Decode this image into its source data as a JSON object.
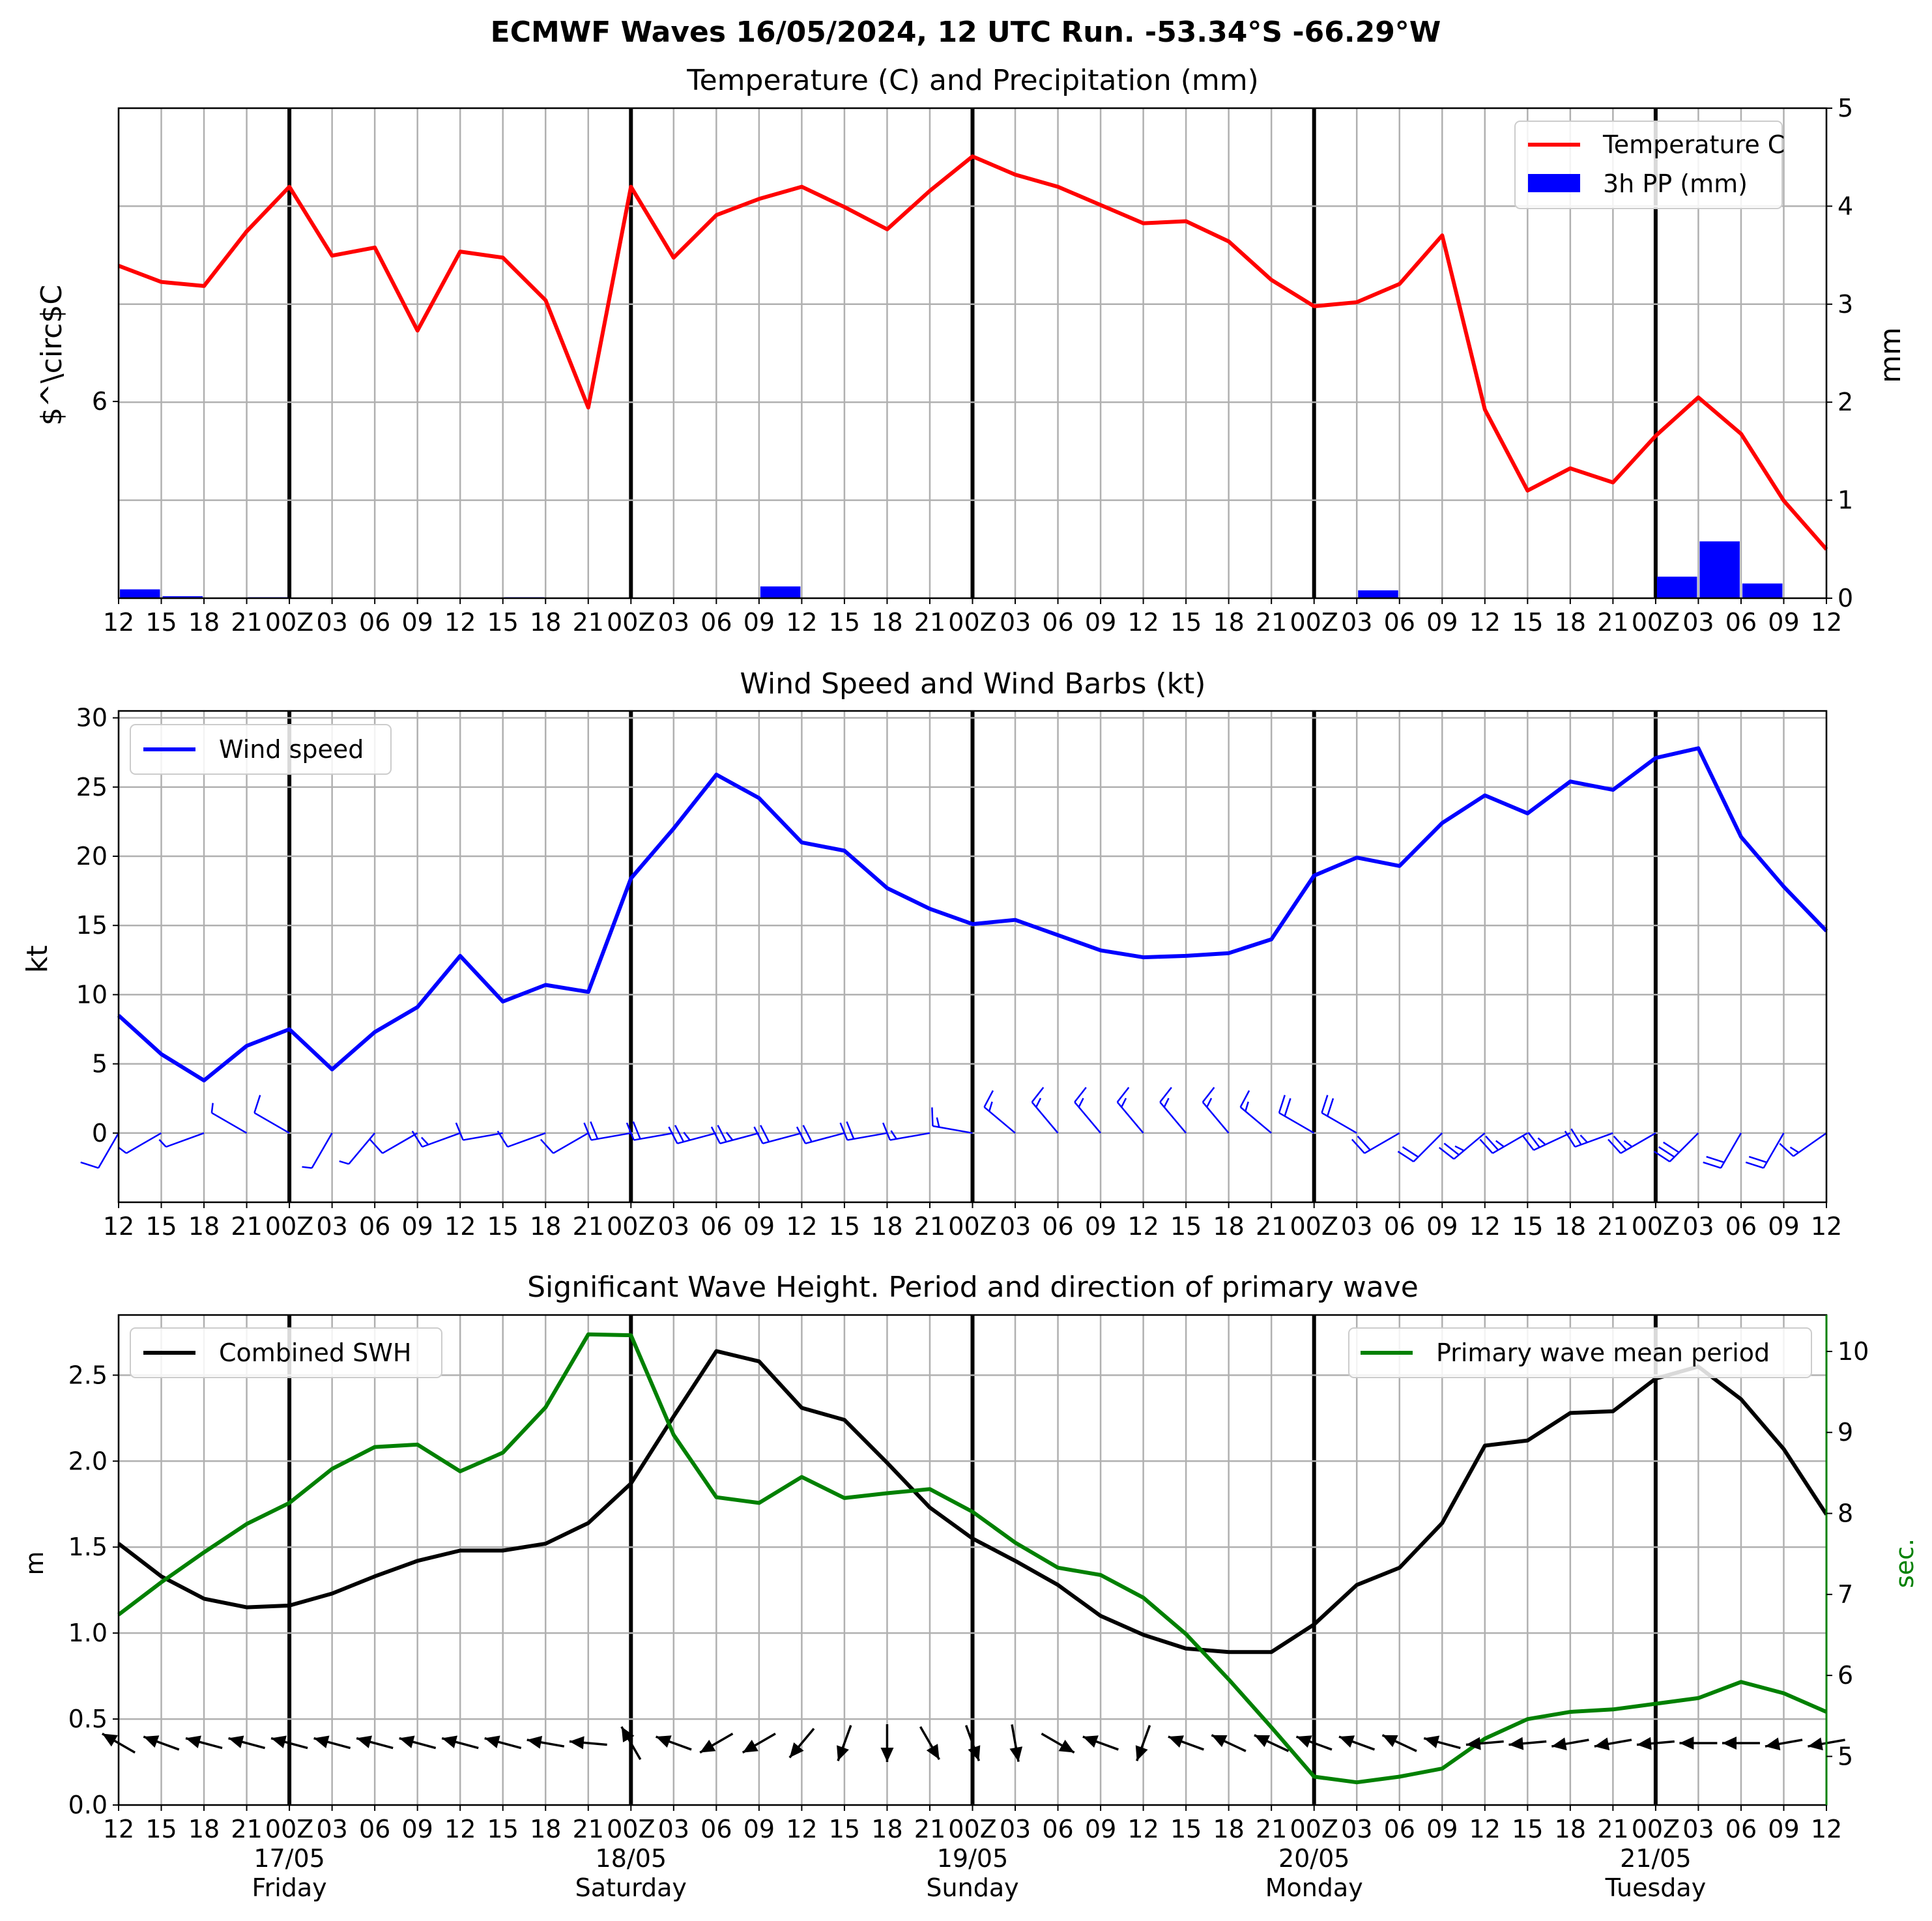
{
  "suptitle": "ECMWF Waves 16/05/2024, 12 UTC Run. -53.34°S -66.29°W",
  "x_tick_labels": [
    "12",
    "15",
    "18",
    "21",
    "00Z",
    "03",
    "06",
    "09",
    "12",
    "15",
    "18",
    "21",
    "00Z",
    "03",
    "06",
    "09",
    "12",
    "15",
    "18",
    "21",
    "00Z",
    "03",
    "06",
    "09",
    "12",
    "15",
    "18",
    "21",
    "00Z",
    "03",
    "06",
    "09",
    "12",
    "15",
    "18",
    "21",
    "00Z",
    "03",
    "06",
    "09",
    "12"
  ],
  "day_labels": [
    {
      "date": "17/05",
      "day": "Friday"
    },
    {
      "date": "18/05",
      "day": "Saturday"
    },
    {
      "date": "19/05",
      "day": "Sunday"
    },
    {
      "date": "20/05",
      "day": "Monday"
    },
    {
      "date": "21/05",
      "day": "Tuesday"
    }
  ],
  "colors": {
    "temperature": "#ff0000",
    "precip": "#0000ff",
    "wind": "#0000ff",
    "swh": "#000000",
    "period": "#008000",
    "grid": "#b0b0b0"
  },
  "chart_data": [
    {
      "type": "line",
      "title": "Temperature (C) and Precipitation (mm)",
      "ylabel": "$^\\circ$C",
      "y2label": "mm",
      "x": [
        "16/05 12",
        "16/05 15",
        "16/05 18",
        "16/05 21",
        "17/05 00",
        "17/05 03",
        "17/05 06",
        "17/05 09",
        "17/05 12",
        "17/05 15",
        "17/05 18",
        "17/05 21",
        "18/05 00",
        "18/05 03",
        "18/05 06",
        "18/05 09",
        "18/05 12",
        "18/05 15",
        "18/05 18",
        "18/05 21",
        "19/05 00",
        "19/05 03",
        "19/05 06",
        "19/05 09",
        "19/05 12",
        "19/05 15",
        "19/05 18",
        "19/05 21",
        "20/05 00",
        "20/05 03",
        "20/05 06",
        "20/05 09",
        "20/05 12",
        "20/05 15",
        "20/05 18",
        "20/05 21",
        "21/05 00",
        "21/05 03",
        "21/05 06",
        "21/05 09",
        "21/05 12"
      ],
      "yticks": [
        "6"
      ],
      "y2lim": [
        0,
        5
      ],
      "y2ticks": [
        "0",
        "1",
        "2",
        "3",
        "4",
        "5"
      ],
      "grid": true,
      "legend_position": "top-right",
      "series": [
        {
          "name": "Temperature C",
          "axis": "left",
          "color": "#ff0000",
          "values": [
            6.67,
            6.59,
            6.57,
            6.84,
            7.06,
            6.72,
            6.76,
            6.35,
            6.74,
            6.71,
            6.5,
            5.97,
            7.06,
            6.71,
            6.92,
            7.0,
            7.06,
            6.96,
            6.85,
            7.04,
            7.21,
            7.12,
            7.06,
            6.97,
            6.88,
            6.89,
            6.79,
            6.6,
            6.47,
            6.49,
            6.58,
            6.82,
            5.96,
            5.56,
            5.67,
            5.6,
            5.83,
            6.02,
            5.84,
            5.51,
            5.27
          ]
        },
        {
          "name": "3h PP (mm)",
          "type": "bar",
          "axis": "right",
          "color": "#0000ff",
          "values": [
            0.09,
            0.02,
            0,
            0.01,
            0,
            0,
            0,
            0,
            0,
            0.01,
            0,
            0,
            0,
            0,
            0,
            0.12,
            0,
            0,
            0,
            0,
            0,
            0,
            0,
            0,
            0,
            0,
            0,
            0,
            0,
            0.08,
            0,
            0,
            0,
            0,
            0,
            0,
            0.22,
            0.58,
            0.15,
            0,
            0
          ]
        }
      ]
    },
    {
      "type": "line",
      "title": "Wind Speed and Wind Barbs (kt)",
      "ylabel": "kt",
      "ylim": [
        -5,
        30.5
      ],
      "yticks": [
        "0",
        "5",
        "10",
        "15",
        "20",
        "25",
        "30"
      ],
      "grid": true,
      "legend_position": "top-left",
      "series": [
        {
          "name": "Wind speed",
          "color": "#0000ff",
          "values": [
            8.5,
            5.7,
            3.8,
            6.3,
            7.5,
            4.6,
            7.3,
            9.1,
            12.8,
            9.5,
            10.7,
            10.2,
            18.4,
            22.0,
            25.9,
            24.2,
            21.0,
            20.4,
            17.7,
            16.2,
            15.1,
            15.4,
            14.3,
            13.2,
            12.7,
            12.8,
            13.0,
            14.0,
            18.6,
            19.9,
            19.3,
            22.4,
            24.4,
            23.1,
            25.4,
            24.8,
            27.1,
            27.8,
            21.4,
            17.8,
            14.6
          ]
        }
      ],
      "barb_directions_deg": [
        210,
        240,
        250,
        300,
        300,
        210,
        220,
        240,
        250,
        260,
        250,
        240,
        260,
        260,
        255,
        255,
        255,
        255,
        260,
        260,
        280,
        310,
        320,
        320,
        320,
        320,
        320,
        310,
        300,
        300,
        240,
        225,
        230,
        240,
        245,
        250,
        240,
        225,
        210,
        210,
        235
      ]
    },
    {
      "type": "line",
      "title": "Significant Wave Height. Period and direction of primary wave",
      "ylabel": "m",
      "y2label": "sec.",
      "ylim": [
        0,
        2.85
      ],
      "yticks": [
        "0.0",
        "0.5",
        "1.0",
        "1.5",
        "2.0",
        "2.5"
      ],
      "y2lim": [
        4.4,
        10.45
      ],
      "y2ticks": [
        "5",
        "6",
        "7",
        "8",
        "9",
        "10"
      ],
      "grid": true,
      "legend_positions": [
        "top-left",
        "top-right"
      ],
      "series": [
        {
          "name": "Combined SWH",
          "axis": "left",
          "color": "#000000",
          "values": [
            1.52,
            1.33,
            1.2,
            1.15,
            1.16,
            1.23,
            1.33,
            1.42,
            1.48,
            1.48,
            1.52,
            1.64,
            1.87,
            2.26,
            2.64,
            2.58,
            2.31,
            2.24,
            1.99,
            1.73,
            1.55,
            1.42,
            1.28,
            1.1,
            0.99,
            0.91,
            0.89,
            0.89,
            1.05,
            1.28,
            1.38,
            1.64,
            2.09,
            2.12,
            2.28,
            2.29,
            2.48,
            2.55,
            2.36,
            2.07,
            1.69
          ]
        },
        {
          "name": "Primary wave mean period",
          "axis": "right",
          "color": "#008000",
          "values": [
            6.75,
            7.15,
            7.52,
            7.87,
            8.13,
            8.55,
            8.82,
            8.85,
            8.52,
            8.75,
            9.31,
            10.21,
            10.2,
            8.97,
            8.2,
            8.13,
            8.45,
            8.19,
            8.25,
            8.3,
            8.02,
            7.64,
            7.33,
            7.24,
            6.96,
            6.51,
            5.95,
            5.36,
            4.75,
            4.68,
            4.75,
            4.85,
            5.22,
            5.46,
            5.55,
            5.58,
            5.65,
            5.72,
            5.92,
            5.78,
            5.55
          ]
        }
      ],
      "wave_direction_deg": [
        120,
        110,
        105,
        105,
        105,
        105,
        105,
        105,
        105,
        105,
        100,
        95,
        150,
        110,
        60,
        60,
        40,
        20,
        0,
        330,
        340,
        350,
        300,
        110,
        20,
        110,
        115,
        115,
        110,
        110,
        115,
        105,
        85,
        85,
        80,
        80,
        85,
        90,
        90,
        80,
        80
      ]
    }
  ]
}
